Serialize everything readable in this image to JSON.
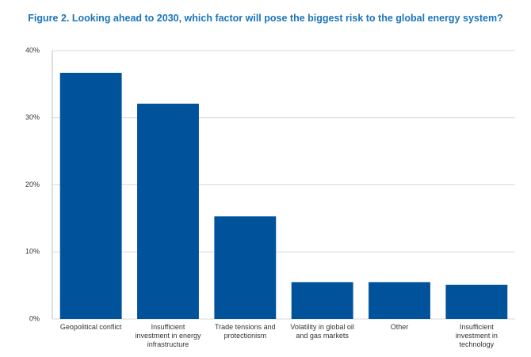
{
  "chart_data": {
    "type": "bar",
    "title": "Figure 2. Looking ahead to 2030, which factor will pose the biggest risk to the global energy system?",
    "categories": [
      "Geopolitical conflict",
      "Insufficient investment in energy infrastructure",
      "Trade tensions and protectionism",
      "Volatility in global oil and gas markets",
      "Other",
      "Insufficient investment in technology"
    ],
    "values": [
      36.7,
      32.1,
      15.3,
      5.5,
      5.5,
      5.1
    ],
    "color": "#00539b",
    "ylim": [
      0,
      40
    ],
    "yticks": [
      {
        "value": 0,
        "label": "0%"
      },
      {
        "value": 10,
        "label": "10%"
      },
      {
        "value": 20,
        "label": "20%"
      },
      {
        "value": 30,
        "label": "30%"
      },
      {
        "value": 40,
        "label": "40%"
      }
    ],
    "grid": true
  }
}
